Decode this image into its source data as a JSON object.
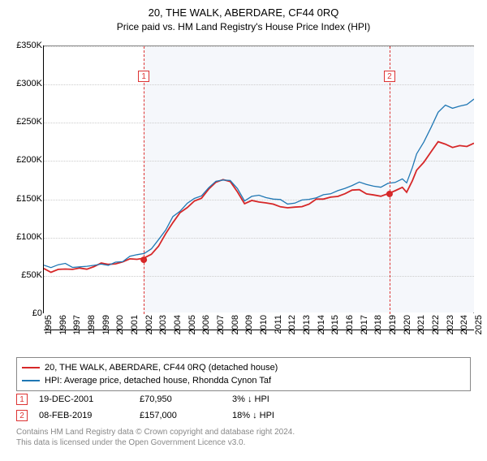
{
  "title": "20, THE WALK, ABERDARE, CF44 0RQ",
  "subtitle": "Price paid vs. HM Land Registry's House Price Index (HPI)",
  "chart": {
    "type": "line",
    "background_color": "#ffffff",
    "shaded_band_color": "#f5f7fb",
    "grid_color": "#cccccc",
    "axis_color": "#000000",
    "ylim": [
      0,
      350000
    ],
    "ytick_labels": [
      "£0",
      "£50K",
      "£100K",
      "£150K",
      "£200K",
      "£250K",
      "£300K",
      "£350K"
    ],
    "ytick_values": [
      0,
      50000,
      100000,
      150000,
      200000,
      250000,
      300000,
      350000
    ],
    "xlim": [
      1995,
      2025
    ],
    "xtick_labels": [
      "1995",
      "1996",
      "1997",
      "1998",
      "1999",
      "2000",
      "2001",
      "2002",
      "2003",
      "2004",
      "2005",
      "2006",
      "2007",
      "2008",
      "2009",
      "2010",
      "2011",
      "2012",
      "2013",
      "2014",
      "2015",
      "2016",
      "2017",
      "2018",
      "2019",
      "2020",
      "2021",
      "2022",
      "2023",
      "2024",
      "2025"
    ],
    "xtick_values": [
      1995,
      1996,
      1997,
      1998,
      1999,
      2000,
      2001,
      2002,
      2003,
      2004,
      2005,
      2006,
      2007,
      2008,
      2009,
      2010,
      2011,
      2012,
      2013,
      2014,
      2015,
      2016,
      2017,
      2018,
      2019,
      2020,
      2021,
      2022,
      2023,
      2024,
      2025
    ],
    "label_fontsize": 11,
    "series": [
      {
        "name": "property",
        "legend": "20, THE WALK, ABERDARE, CF44 0RQ (detached house)",
        "color": "#d62728",
        "line_width": 1.8,
        "points": [
          [
            1995,
            58000
          ],
          [
            1995.5,
            56000
          ],
          [
            1996,
            57000
          ],
          [
            1996.5,
            59000
          ],
          [
            1997,
            58000
          ],
          [
            1997.5,
            60000
          ],
          [
            1998,
            59000
          ],
          [
            1998.5,
            61000
          ],
          [
            1999,
            63000
          ],
          [
            1999.5,
            62000
          ],
          [
            2000,
            64000
          ],
          [
            2000.5,
            66000
          ],
          [
            2001,
            68000
          ],
          [
            2001.5,
            70000
          ],
          [
            2001.97,
            70950
          ],
          [
            2002.5,
            78000
          ],
          [
            2003,
            90000
          ],
          [
            2003.5,
            105000
          ],
          [
            2004,
            120000
          ],
          [
            2004.5,
            132000
          ],
          [
            2005,
            140000
          ],
          [
            2005.5,
            148000
          ],
          [
            2006,
            152000
          ],
          [
            2006.5,
            160000
          ],
          [
            2007,
            168000
          ],
          [
            2007.5,
            172000
          ],
          [
            2008,
            170000
          ],
          [
            2008.5,
            155000
          ],
          [
            2009,
            140000
          ],
          [
            2009.5,
            145000
          ],
          [
            2010,
            148000
          ],
          [
            2010.5,
            146000
          ],
          [
            2011,
            143000
          ],
          [
            2011.5,
            140000
          ],
          [
            2012,
            138000
          ],
          [
            2012.5,
            140000
          ],
          [
            2013,
            142000
          ],
          [
            2013.5,
            145000
          ],
          [
            2014,
            147000
          ],
          [
            2014.5,
            148000
          ],
          [
            2015,
            150000
          ],
          [
            2015.5,
            152000
          ],
          [
            2016,
            154000
          ],
          [
            2016.5,
            158000
          ],
          [
            2017,
            160000
          ],
          [
            2017.5,
            158000
          ],
          [
            2018,
            155000
          ],
          [
            2018.5,
            154000
          ],
          [
            2019.11,
            157000
          ],
          [
            2019.5,
            160000
          ],
          [
            2020,
            165000
          ],
          [
            2020.3,
            158000
          ],
          [
            2020.7,
            172000
          ],
          [
            2021,
            185000
          ],
          [
            2021.5,
            195000
          ],
          [
            2022,
            210000
          ],
          [
            2022.5,
            222000
          ],
          [
            2023,
            218000
          ],
          [
            2023.5,
            214000
          ],
          [
            2024,
            216000
          ],
          [
            2024.5,
            218000
          ],
          [
            2025,
            222000
          ]
        ]
      },
      {
        "name": "hpi",
        "legend": "HPI: Average price, detached house, Rhondda Cynon Taf",
        "color": "#1f77b4",
        "line_width": 1.3,
        "points": [
          [
            1995,
            60000
          ],
          [
            1995.5,
            59000
          ],
          [
            1996,
            60000
          ],
          [
            1996.5,
            62000
          ],
          [
            1997,
            61000
          ],
          [
            1997.5,
            63000
          ],
          [
            1998,
            62000
          ],
          [
            1998.5,
            64000
          ],
          [
            1999,
            66000
          ],
          [
            1999.5,
            65000
          ],
          [
            2000,
            67000
          ],
          [
            2000.5,
            69000
          ],
          [
            2001,
            71000
          ],
          [
            2001.5,
            73000
          ],
          [
            2002,
            76000
          ],
          [
            2002.5,
            82000
          ],
          [
            2003,
            94000
          ],
          [
            2003.5,
            108000
          ],
          [
            2004,
            124000
          ],
          [
            2004.5,
            136000
          ],
          [
            2005,
            144000
          ],
          [
            2005.5,
            152000
          ],
          [
            2006,
            156000
          ],
          [
            2006.5,
            164000
          ],
          [
            2007,
            172000
          ],
          [
            2007.5,
            176000
          ],
          [
            2008,
            174000
          ],
          [
            2008.5,
            160000
          ],
          [
            2009,
            146000
          ],
          [
            2009.5,
            150000
          ],
          [
            2010,
            152000
          ],
          [
            2010.5,
            150000
          ],
          [
            2011,
            148000
          ],
          [
            2011.5,
            145000
          ],
          [
            2012,
            144000
          ],
          [
            2012.5,
            146000
          ],
          [
            2013,
            148000
          ],
          [
            2013.5,
            151000
          ],
          [
            2014,
            153000
          ],
          [
            2014.5,
            155000
          ],
          [
            2015,
            157000
          ],
          [
            2015.5,
            159000
          ],
          [
            2016,
            162000
          ],
          [
            2016.5,
            166000
          ],
          [
            2017,
            168000
          ],
          [
            2017.5,
            167000
          ],
          [
            2018,
            165000
          ],
          [
            2018.5,
            164000
          ],
          [
            2019,
            168000
          ],
          [
            2019.5,
            172000
          ],
          [
            2020,
            178000
          ],
          [
            2020.3,
            170000
          ],
          [
            2020.7,
            190000
          ],
          [
            2021,
            210000
          ],
          [
            2021.5,
            225000
          ],
          [
            2022,
            245000
          ],
          [
            2022.5,
            262000
          ],
          [
            2023,
            270000
          ],
          [
            2023.5,
            265000
          ],
          [
            2024,
            268000
          ],
          [
            2024.5,
            272000
          ],
          [
            2025,
            278000
          ]
        ]
      }
    ],
    "sale_markers": [
      {
        "index": "1",
        "x": 2001.97,
        "y": 70950,
        "marker_color": "#d62728"
      },
      {
        "index": "2",
        "x": 2019.11,
        "y": 157000,
        "marker_color": "#d62728"
      }
    ],
    "shaded_bands": [
      {
        "from": 2001.97,
        "to": 2019.11
      },
      {
        "from": 2019.11,
        "to": 2025
      }
    ]
  },
  "legend": {
    "border_color": "#888888",
    "fontsize": 11
  },
  "sales": [
    {
      "index": "1",
      "date": "19-DEC-2001",
      "price": "£70,950",
      "diff": "3% ↓ HPI"
    },
    {
      "index": "2",
      "date": "08-FEB-2019",
      "price": "£157,000",
      "diff": "18% ↓ HPI"
    }
  ],
  "footer": {
    "line1": "Contains HM Land Registry data © Crown copyright and database right 2024.",
    "line2": "This data is licensed under the Open Government Licence v3.0.",
    "color": "#888888",
    "fontsize": 10
  }
}
